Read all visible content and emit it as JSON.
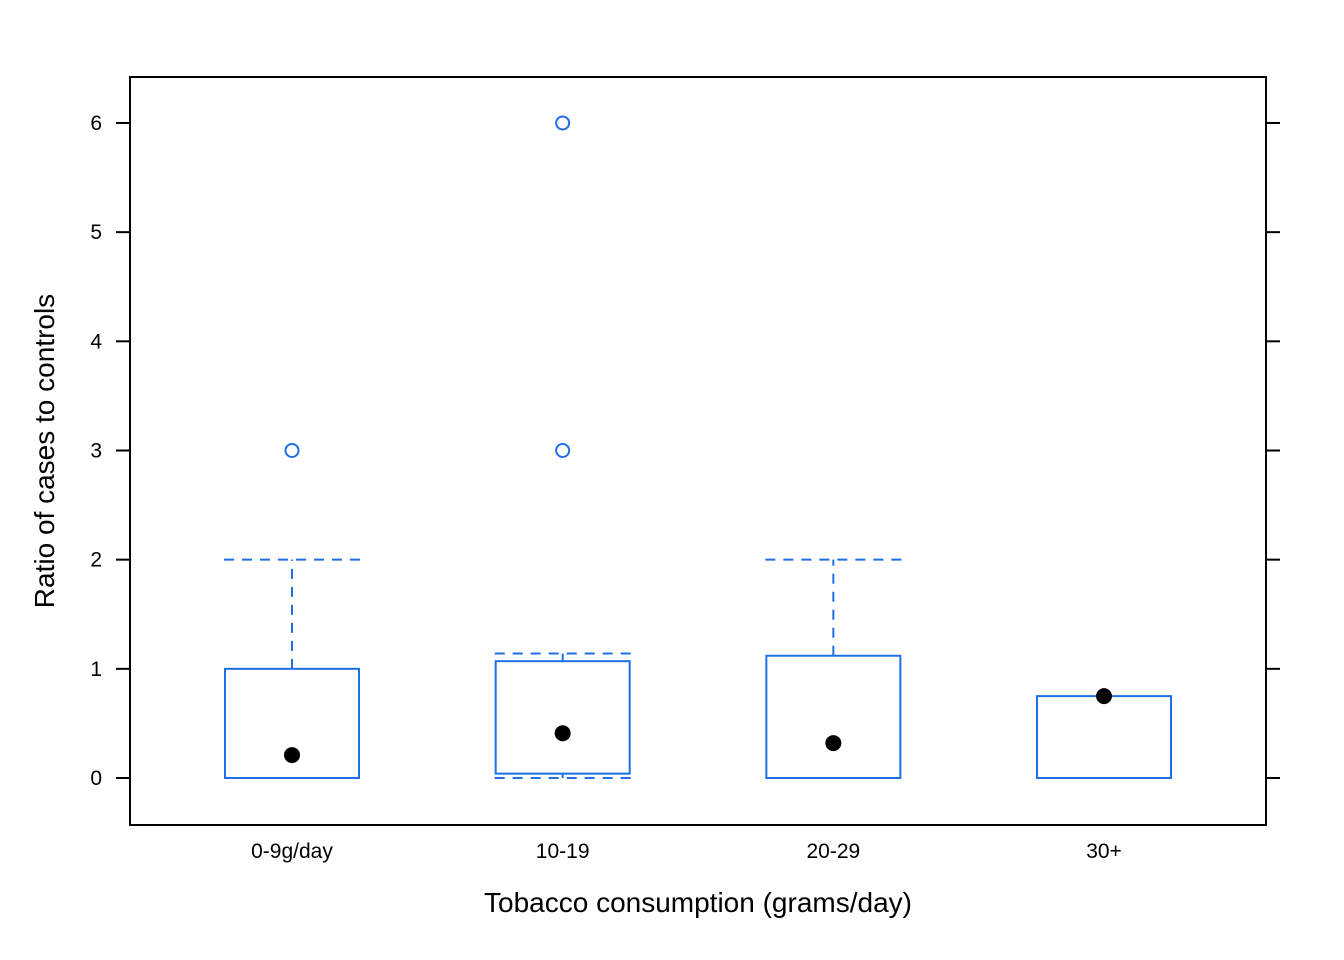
{
  "chart_data": {
    "type": "box",
    "xlabel": "Tobacco consumption (grams/day)",
    "ylabel": "Ratio of cases to controls",
    "categories": [
      "0-9g/day",
      "10-19",
      "20-29",
      "30+"
    ],
    "yticks": [
      0,
      1,
      2,
      3,
      4,
      5,
      6
    ],
    "ylim": [
      -0.42,
      6.42
    ],
    "grid": false,
    "box_color": "#1f6fe6",
    "median_color": "#000000",
    "boxes": [
      {
        "category": "0-9g/day",
        "whisker_low": 0,
        "q1": 0,
        "median": 0.21,
        "q3": 1.0,
        "whisker_high": 2.0,
        "outliers": [
          3.0
        ]
      },
      {
        "category": "10-19",
        "whisker_low": 0,
        "q1": 0.04,
        "median": 0.41,
        "q3": 1.07,
        "whisker_high": 1.14,
        "outliers": [
          3.0,
          6.0
        ]
      },
      {
        "category": "20-29",
        "whisker_low": 0,
        "q1": 0,
        "median": 0.32,
        "q3": 1.12,
        "whisker_high": 2.0,
        "outliers": []
      },
      {
        "category": "30+",
        "whisker_low": 0,
        "q1": 0,
        "median": 0.75,
        "q3": 0.75,
        "whisker_high": 0.75,
        "outliers": []
      }
    ]
  }
}
